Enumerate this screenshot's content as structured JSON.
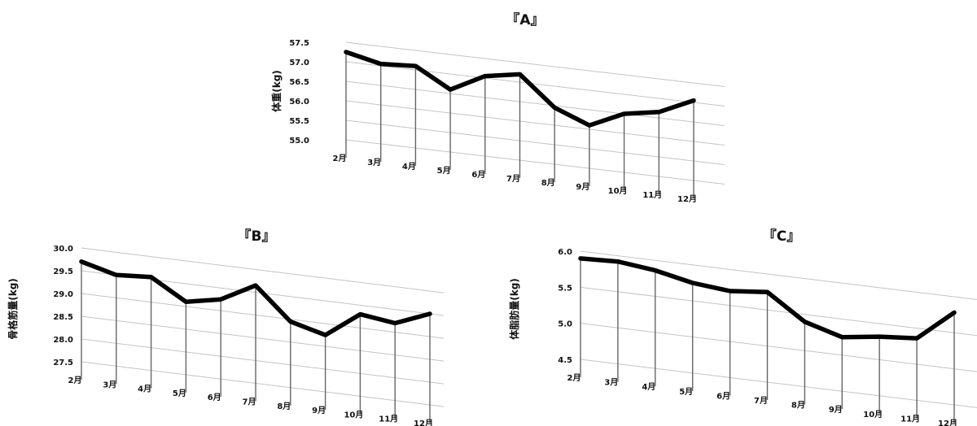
{
  "chart_data": [
    {
      "type": "line",
      "title": "『A』",
      "xlabel": "",
      "ylabel": "体重(kg)",
      "categories": [
        "2月",
        "3月",
        "4月",
        "5月",
        "6月",
        "7月",
        "8月",
        "9月",
        "10月",
        "11月",
        "12月"
      ],
      "yticks": [
        "55.0",
        "55.5",
        "56.0",
        "56.5",
        "57.0",
        "57.5"
      ],
      "ylim": [
        55.0,
        57.5
      ],
      "grid": true,
      "style": "3d-ribbon",
      "series": [
        {
          "values": [
            57.25,
            57.05,
            57.1,
            56.6,
            57.05,
            57.2,
            56.45,
            56.1,
            56.5,
            56.65,
            57.05
          ]
        }
      ]
    },
    {
      "type": "line",
      "title": "『B』",
      "xlabel": "",
      "ylabel": "骨格筋量(kg)",
      "categories": [
        "2月",
        "3月",
        "4月",
        "5月",
        "6月",
        "7月",
        "8月",
        "9月",
        "10月",
        "11月",
        "12月"
      ],
      "yticks": [
        "27.5",
        "28.0",
        "28.5",
        "29.0",
        "29.5",
        "30.0"
      ],
      "ylim": [
        27.5,
        30.0
      ],
      "grid": true,
      "style": "3d-ribbon",
      "series": [
        {
          "values": [
            29.7,
            29.5,
            29.55,
            29.1,
            29.25,
            29.65,
            28.95,
            28.75,
            29.3,
            29.2,
            29.5
          ]
        }
      ]
    },
    {
      "type": "line",
      "title": "『C』",
      "xlabel": "",
      "ylabel": "体脂肪量(kg)",
      "categories": [
        "2月",
        "3月",
        "4月",
        "5月",
        "6月",
        "7月",
        "8月",
        "9月",
        "10月",
        "11月",
        "12月"
      ],
      "yticks": [
        "4.5",
        "5.0",
        "5.5",
        "6.0"
      ],
      "ylim": [
        4.5,
        6.0
      ],
      "grid": true,
      "style": "3d-ribbon",
      "series": [
        {
          "values": [
            5.9,
            5.92,
            5.86,
            5.75,
            5.7,
            5.75,
            5.4,
            5.25,
            5.32,
            5.36,
            5.78
          ]
        }
      ]
    }
  ]
}
